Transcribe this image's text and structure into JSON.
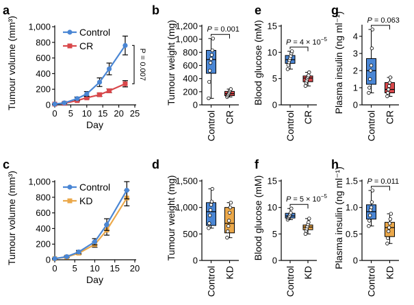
{
  "figure": {
    "colors": {
      "control": "#4A86D4",
      "cr": "#D9484B",
      "kd": "#EBA84A",
      "dot": "#ffffff"
    },
    "panels": [
      {
        "id": "a",
        "label": "a"
      },
      {
        "id": "b",
        "label": "b"
      },
      {
        "id": "e",
        "label": "e"
      },
      {
        "id": "g",
        "label": "g"
      },
      {
        "id": "c",
        "label": "c"
      },
      {
        "id": "d",
        "label": "d"
      },
      {
        "id": "f",
        "label": "f"
      },
      {
        "id": "h",
        "label": "h"
      }
    ]
  },
  "chart_data": [
    {
      "id": "a",
      "type": "line",
      "title": "",
      "xlabel": "Day",
      "ylabel": "Tumour volume (mm³)",
      "xlim": [
        0,
        25
      ],
      "ylim": [
        0,
        1000
      ],
      "xticks": [
        0,
        5,
        10,
        15,
        20,
        25
      ],
      "xticklabels": [
        "0",
        "5",
        "10",
        "15",
        "20",
        "25"
      ],
      "yticks": [
        0,
        200,
        400,
        600,
        800,
        1000
      ],
      "yticklabels": [
        "0",
        "200",
        "400",
        "600",
        "800",
        "1,000"
      ],
      "legend": {
        "placement": "top-left"
      },
      "series": [
        {
          "name": "Control",
          "color": "#4A86D4",
          "marker": "circle",
          "x": [
            0,
            3,
            7,
            10,
            14,
            17,
            22
          ],
          "y": [
            10,
            25,
            80,
            140,
            290,
            460,
            760
          ],
          "err": [
            3,
            8,
            20,
            30,
            55,
            75,
            120
          ]
        },
        {
          "name": "CR",
          "color": "#D9484B",
          "marker": "square",
          "x": [
            0,
            3,
            7,
            10,
            14,
            17,
            22
          ],
          "y": [
            10,
            20,
            55,
            90,
            130,
            180,
            270
          ],
          "err": [
            3,
            5,
            10,
            12,
            20,
            25,
            40
          ]
        }
      ],
      "annotation": {
        "text": "P = 0.007"
      }
    },
    {
      "id": "b",
      "type": "box",
      "ylabel": "Tumour weight (mg)",
      "ylim": [
        0,
        1200
      ],
      "yticks": [
        0,
        200,
        400,
        600,
        800,
        1000,
        1200
      ],
      "yticklabels": [
        "0",
        "200",
        "400",
        "600",
        "800",
        "1,000",
        "1,200"
      ],
      "categories": [
        "Control",
        "CR"
      ],
      "boxes": [
        {
          "name": "Control",
          "color": "#4A86D4",
          "min": 100,
          "q1": 480,
          "median": 690,
          "q3": 830,
          "max": 1010,
          "points": [
            100,
            350,
            520,
            640,
            700,
            760,
            830,
            1010
          ]
        },
        {
          "name": "CR",
          "color": "#D9484B",
          "min": 120,
          "q1": 140,
          "median": 170,
          "q3": 205,
          "max": 240,
          "points": [
            120,
            140,
            160,
            180,
            200,
            220,
            240
          ]
        }
      ],
      "pvalue": {
        "text": "P = 0.001"
      }
    },
    {
      "id": "e",
      "type": "box",
      "ylabel": "Blood glucose (mM)",
      "ylim": [
        0,
        15
      ],
      "yticks": [
        0,
        5,
        10,
        15
      ],
      "yticklabels": [
        "0",
        "5",
        "10",
        "15"
      ],
      "categories": [
        "Control",
        "CR"
      ],
      "boxes": [
        {
          "name": "Control",
          "color": "#4A86D4",
          "min": 6.8,
          "q1": 7.9,
          "median": 8.6,
          "q3": 9.4,
          "max": 10.2,
          "points": [
            6.8,
            7.6,
            8.1,
            8.5,
            8.9,
            9.3,
            9.8,
            10.2
          ]
        },
        {
          "name": "CR",
          "color": "#D9484B",
          "min": 3.6,
          "q1": 4.4,
          "median": 5.1,
          "q3": 5.5,
          "max": 6.2,
          "points": [
            3.6,
            4.2,
            4.6,
            5.0,
            5.3,
            5.6,
            6.2
          ]
        }
      ],
      "pvalue": {
        "text": "P = 4 × 10",
        "exp": "−5"
      }
    },
    {
      "id": "g",
      "type": "box",
      "ylabel": "Plasma insulin (ng ml⁻¹)",
      "ylim": [
        0,
        4.6
      ],
      "yticks": [
        0,
        1,
        2,
        3,
        4
      ],
      "yticklabels": [
        "0",
        "1",
        "2",
        "3",
        "4"
      ],
      "categories": [
        "Control",
        "CR"
      ],
      "boxes": [
        {
          "name": "Control",
          "color": "#4A86D4",
          "min": 0.7,
          "q1": 1.2,
          "median": 2.0,
          "q3": 2.7,
          "max": 4.4,
          "points": [
            0.7,
            1.0,
            1.5,
            2.0,
            2.3,
            3.3,
            4.4
          ]
        },
        {
          "name": "CR",
          "color": "#D9484B",
          "min": 0.5,
          "q1": 0.7,
          "median": 0.9,
          "q3": 1.3,
          "max": 1.6,
          "points": [
            0.5,
            0.7,
            0.9,
            1.1,
            1.3,
            1.6
          ]
        }
      ],
      "pvalue": {
        "text": "P = 0.063"
      }
    },
    {
      "id": "c",
      "type": "line",
      "xlabel": "Day",
      "ylabel": "Tumour volume (mm³)",
      "xlim": [
        0,
        20
      ],
      "ylim": [
        0,
        1000
      ],
      "xticks": [
        0,
        5,
        10,
        15,
        20
      ],
      "xticklabels": [
        "0",
        "5",
        "10",
        "15",
        "20"
      ],
      "yticks": [
        0,
        200,
        400,
        600,
        800,
        1000
      ],
      "yticklabels": [
        "0",
        "200",
        "400",
        "600",
        "800",
        "1,000"
      ],
      "legend": {
        "placement": "top-left"
      },
      "series": [
        {
          "name": "Control",
          "color": "#4A86D4",
          "marker": "circle",
          "x": [
            0,
            3,
            6,
            10,
            13,
            18
          ],
          "y": [
            15,
            40,
            100,
            230,
            450,
            890
          ],
          "err": [
            4,
            10,
            20,
            40,
            75,
            110
          ]
        },
        {
          "name": "KD",
          "color": "#EBA84A",
          "marker": "square",
          "x": [
            0,
            3,
            6,
            10,
            13,
            18
          ],
          "y": [
            15,
            35,
            85,
            195,
            380,
            790
          ],
          "err": [
            4,
            9,
            18,
            35,
            65,
            100
          ]
        }
      ]
    },
    {
      "id": "d",
      "type": "box",
      "ylabel": "Tumour weight (mg)",
      "ylim": [
        0,
        1500
      ],
      "yticks": [
        0,
        500,
        1000,
        1500
      ],
      "yticklabels": [
        "0",
        "500",
        "1,000",
        "1,500"
      ],
      "categories": [
        "Control",
        "KD"
      ],
      "boxes": [
        {
          "name": "Control",
          "color": "#4A86D4",
          "min": 610,
          "q1": 660,
          "median": 920,
          "q3": 1090,
          "max": 1350,
          "points": [
            610,
            700,
            850,
            950,
            1050,
            1110,
            1350
          ]
        },
        {
          "name": "KD",
          "color": "#EBA84A",
          "min": 430,
          "q1": 520,
          "median": 700,
          "q3": 1000,
          "max": 1090,
          "points": [
            430,
            550,
            650,
            750,
            900,
            1000,
            1090
          ]
        }
      ]
    },
    {
      "id": "f",
      "type": "box",
      "ylabel": "Blood glucose (mM)",
      "ylim": [
        0,
        15
      ],
      "yticks": [
        0,
        5,
        10,
        15
      ],
      "yticklabels": [
        "0",
        "5",
        "10",
        "15"
      ],
      "categories": [
        "Control",
        "KD"
      ],
      "boxes": [
        {
          "name": "Control",
          "color": "#4A86D4",
          "min": 7.7,
          "q1": 8.0,
          "median": 8.4,
          "q3": 8.9,
          "max": 9.8,
          "points": [
            7.7,
            8.0,
            8.2,
            8.4,
            8.7,
            9.0,
            9.8
          ]
        },
        {
          "name": "KD",
          "color": "#EBA84A",
          "min": 5.0,
          "q1": 5.8,
          "median": 6.3,
          "q3": 6.7,
          "max": 7.9,
          "points": [
            5.0,
            5.6,
            6.0,
            6.4,
            6.8,
            7.2,
            7.9
          ]
        }
      ],
      "pvalue": {
        "text": "P = 5 × 10",
        "exp": "−5"
      }
    },
    {
      "id": "h",
      "type": "box",
      "ylabel": "Plasma insulin (ng ml⁻¹)",
      "ylim": [
        0,
        1.5
      ],
      "yticks": [
        0,
        0.5,
        1.0,
        1.5
      ],
      "yticklabels": [
        "0",
        "0.5",
        "1.0",
        "1.5"
      ],
      "categories": [
        "Control",
        "KD"
      ],
      "boxes": [
        {
          "name": "Control",
          "color": "#4A86D4",
          "min": 0.65,
          "q1": 0.78,
          "median": 0.92,
          "q3": 1.05,
          "max": 1.32,
          "points": [
            0.65,
            0.75,
            0.85,
            0.95,
            1.0,
            1.1,
            1.32
          ]
        },
        {
          "name": "KD",
          "color": "#EBA84A",
          "min": 0.32,
          "q1": 0.45,
          "median": 0.62,
          "q3": 0.72,
          "max": 0.88,
          "points": [
            0.32,
            0.42,
            0.55,
            0.62,
            0.7,
            0.78,
            0.88
          ]
        }
      ],
      "pvalue": {
        "text": "P = 0.011"
      }
    }
  ]
}
